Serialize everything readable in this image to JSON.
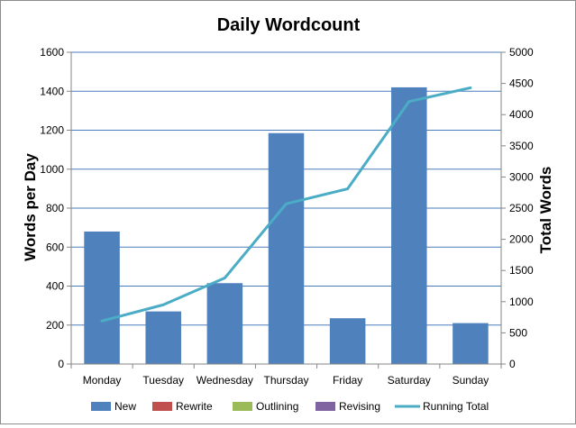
{
  "chart_data": {
    "type": "bar",
    "title": "Daily Wordcount",
    "ylabel": "Words per Day",
    "y2label": "Total Words",
    "categories": [
      "Monday",
      "Tuesday",
      "Wednesday",
      "Thursday",
      "Friday",
      "Saturday",
      "Sunday"
    ],
    "ylim": [
      0,
      1600
    ],
    "y2lim": [
      0,
      5000
    ],
    "yticks": [
      "0",
      "200",
      "400",
      "600",
      "800",
      "1000",
      "1200",
      "1400",
      "1600"
    ],
    "y2ticks": [
      "0",
      "500",
      "1000",
      "1500",
      "2000",
      "2500",
      "3000",
      "3500",
      "4000",
      "4500",
      "5000"
    ],
    "grid": true,
    "legend_position": "bottom",
    "series": [
      {
        "name": "New",
        "type": "bar",
        "axis": "left",
        "color": "#4f81bd",
        "values": [
          680,
          270,
          415,
          1185,
          235,
          1420,
          210
        ]
      },
      {
        "name": "Rewrite",
        "type": "bar",
        "axis": "left",
        "color": "#c0504d",
        "values": [
          0,
          0,
          0,
          0,
          0,
          0,
          0
        ]
      },
      {
        "name": "Outlining",
        "type": "bar",
        "axis": "left",
        "color": "#9bbb59",
        "values": [
          0,
          0,
          0,
          0,
          0,
          0,
          0
        ]
      },
      {
        "name": "Revising",
        "type": "bar",
        "axis": "left",
        "color": "#8064a2",
        "values": [
          0,
          0,
          0,
          0,
          0,
          0,
          0
        ]
      },
      {
        "name": "Running Total",
        "type": "line",
        "axis": "right",
        "color": "#4bacc6",
        "values": [
          690,
          950,
          1380,
          2570,
          2810,
          4210,
          4430
        ]
      }
    ]
  }
}
